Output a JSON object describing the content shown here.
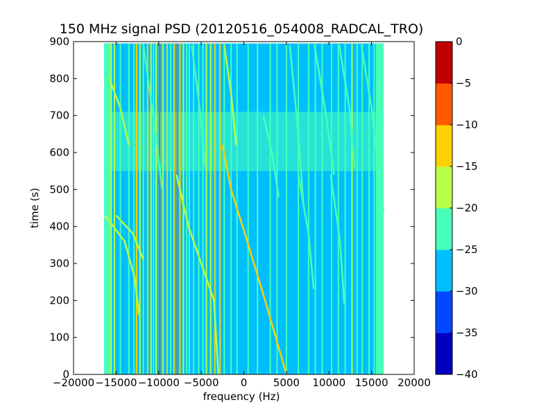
{
  "chart_data": {
    "type": "heatmap",
    "title": "150 MHz signal PSD (20120516_054008_RADCAL_TRO)",
    "xlabel": "frequency (Hz)",
    "ylabel": "time (s)",
    "xlim": [
      -20000,
      20000
    ],
    "ylim": [
      0,
      900
    ],
    "x_ticks": [
      "−20000",
      "−15000",
      "−10000",
      "−5000",
      "0",
      "5000",
      "10000",
      "15000",
      "20000"
    ],
    "x_tick_values": [
      -20000,
      -15000,
      -10000,
      -5000,
      0,
      5000,
      10000,
      15000,
      20000
    ],
    "y_ticks": [
      "0",
      "100",
      "200",
      "300",
      "400",
      "500",
      "600",
      "700",
      "800",
      "900"
    ],
    "y_tick_values": [
      0,
      100,
      200,
      300,
      400,
      500,
      600,
      700,
      800,
      900
    ],
    "data_extent": {
      "x": [
        -16400,
        16400
      ],
      "y": [
        0,
        895
      ]
    },
    "background_level": -27.5,
    "noisy_band_level": -22.5,
    "noisy_band_time": [
      550,
      710
    ],
    "edge_band_level": -22.5,
    "edge_bands_hz": [
      [
        -16400,
        -15500
      ],
      [
        15500,
        16400
      ]
    ],
    "grid": false,
    "colorbar": {
      "range": [
        -40,
        0
      ],
      "levels": [
        -40,
        -35,
        -30,
        -25,
        -20,
        -15,
        -10,
        -5,
        0
      ],
      "tick_labels": [
        "−40",
        "−35",
        "−30",
        "−25",
        "−20",
        "−15",
        "−10",
        "−5",
        "0"
      ],
      "colors": [
        "#0000c0",
        "#0047ff",
        "#00bfff",
        "#47ffb8",
        "#b8ff47",
        "#ffd000",
        "#ff5800",
        "#c00000"
      ]
    },
    "vertical_lines": [
      {
        "f": -15600,
        "level": -17.5
      },
      {
        "f": -15200,
        "level": -17.5
      },
      {
        "f": -14500,
        "level": -22.5
      },
      {
        "f": -13500,
        "level": -22.5
      },
      {
        "f": -12900,
        "level": -22.5
      },
      {
        "f": -12600,
        "level": -12.5
      },
      {
        "f": -12200,
        "level": -17.5
      },
      {
        "f": -11800,
        "level": -22.5
      },
      {
        "f": -11300,
        "level": -12.5
      },
      {
        "f": -10900,
        "level": -17.5
      },
      {
        "f": -10600,
        "level": -22.5
      },
      {
        "f": -10300,
        "level": -17.5
      },
      {
        "f": -9900,
        "level": -7.5
      },
      {
        "f": -9500,
        "level": -17.5
      },
      {
        "f": -9000,
        "level": -12.5
      },
      {
        "f": -8600,
        "level": -22.5
      },
      {
        "f": -8200,
        "level": -12.5
      },
      {
        "f": -7800,
        "level": -7.5
      },
      {
        "f": -7500,
        "level": -12.5
      },
      {
        "f": -7100,
        "level": -17.5
      },
      {
        "f": -6700,
        "level": -22.5
      },
      {
        "f": -6400,
        "level": -22.5
      },
      {
        "f": -5900,
        "level": -22.5
      },
      {
        "f": -5300,
        "level": -22.5
      },
      {
        "f": -4800,
        "level": -22.5
      },
      {
        "f": -4400,
        "level": -17.5
      },
      {
        "f": -3900,
        "level": -17.5
      },
      {
        "f": -3400,
        "level": -12.5
      },
      {
        "f": -2800,
        "level": -12.5
      },
      {
        "f": -2300,
        "level": -22.5
      },
      {
        "f": -1500,
        "level": -22.5
      },
      {
        "f": -800,
        "level": -22.5
      },
      {
        "f": 500,
        "level": -22.5
      },
      {
        "f": 1600,
        "level": -22.5
      },
      {
        "f": 3100,
        "level": -22.5
      },
      {
        "f": 3900,
        "level": -22.5
      },
      {
        "f": 5000,
        "level": -22.5
      },
      {
        "f": 6400,
        "level": -22.5
      },
      {
        "f": 7600,
        "level": -22.5
      },
      {
        "f": 8400,
        "level": -22.5
      },
      {
        "f": 9200,
        "level": -22.5
      },
      {
        "f": 10300,
        "level": -22.5
      },
      {
        "f": 11100,
        "level": -22.5
      },
      {
        "f": 11900,
        "level": -22.5
      },
      {
        "f": 12700,
        "level": -17.5
      },
      {
        "f": 13300,
        "level": -22.5
      },
      {
        "f": 13900,
        "level": -22.5
      },
      {
        "f": 14700,
        "level": -22.5
      },
      {
        "f": 15300,
        "level": -22.5
      }
    ],
    "drifting_tracks": [
      {
        "level": -12.5,
        "points": [
          [
            5000,
            0
          ],
          [
            2500,
            200
          ],
          [
            0,
            390
          ],
          [
            -1500,
            500
          ],
          [
            -2500,
            620
          ]
        ]
      },
      {
        "level": -17.5,
        "points": [
          [
            -3000,
            0
          ],
          [
            -3500,
            200
          ],
          [
            -6500,
            400
          ],
          [
            -7900,
            540
          ]
        ]
      },
      {
        "level": -17.5,
        "points": [
          [
            -16300,
            430
          ],
          [
            -14000,
            360
          ],
          [
            -12800,
            260
          ],
          [
            -12300,
            160
          ]
        ]
      },
      {
        "level": -17.5,
        "points": [
          [
            -15000,
            430
          ],
          [
            -13000,
            380
          ],
          [
            -11800,
            310
          ]
        ]
      },
      {
        "level": -17.5,
        "points": [
          [
            -15800,
            800
          ],
          [
            -14500,
            720
          ],
          [
            -13500,
            620
          ]
        ]
      },
      {
        "level": -22.5,
        "points": [
          [
            -11800,
            890
          ],
          [
            -10300,
            640
          ],
          [
            -9600,
            500
          ]
        ]
      },
      {
        "level": -22.5,
        "points": [
          [
            -6100,
            890
          ],
          [
            -5200,
            720
          ],
          [
            -4500,
            560
          ]
        ]
      },
      {
        "level": -17.5,
        "points": [
          [
            -2300,
            890
          ],
          [
            -1500,
            760
          ],
          [
            -900,
            620
          ]
        ]
      },
      {
        "level": -22.5,
        "points": [
          [
            2300,
            700
          ],
          [
            3300,
            600
          ],
          [
            4100,
            480
          ]
        ]
      },
      {
        "level": -22.5,
        "points": [
          [
            5400,
            890
          ],
          [
            6400,
            650
          ],
          [
            7000,
            460
          ]
        ]
      },
      {
        "level": -22.5,
        "points": [
          [
            8300,
            890
          ],
          [
            9600,
            710
          ],
          [
            10600,
            540
          ]
        ]
      },
      {
        "level": -22.5,
        "points": [
          [
            11200,
            890
          ],
          [
            12400,
            720
          ],
          [
            13000,
            560
          ]
        ]
      },
      {
        "level": -22.5,
        "points": [
          [
            13800,
            890
          ],
          [
            15000,
            720
          ],
          [
            16400,
            440
          ]
        ]
      },
      {
        "level": -22.5,
        "points": [
          [
            6400,
            540
          ],
          [
            7600,
            380
          ],
          [
            8200,
            230
          ]
        ]
      },
      {
        "level": -22.5,
        "points": [
          [
            10200,
            540
          ],
          [
            11300,
            360
          ],
          [
            11800,
            190
          ]
        ]
      }
    ]
  }
}
